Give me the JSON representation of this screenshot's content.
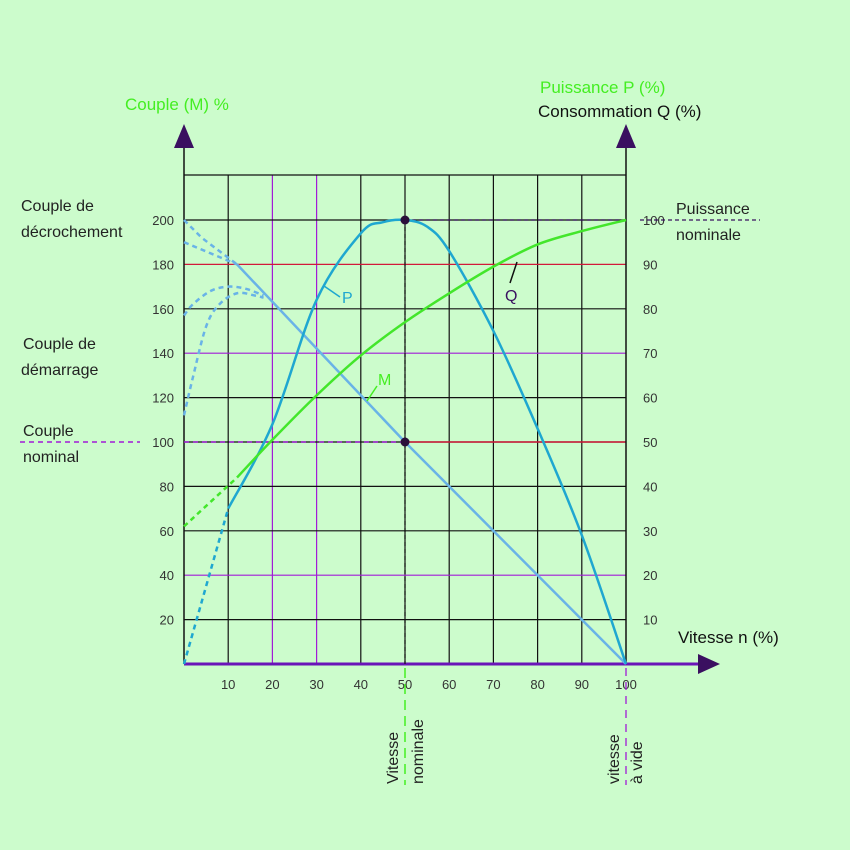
{
  "chart_data": {
    "type": "line",
    "xlabel": "Vitesse n (%)",
    "ylabel_left": "Couple (M) %",
    "ylabel_right_1": "Puissance P (%)",
    "ylabel_right_2": "Consommation Q (%)",
    "xlim": [
      0,
      100
    ],
    "ylim": [
      0,
      200
    ],
    "x_ticks": [
      "10",
      "20",
      "30",
      "40",
      "50",
      "60",
      "70",
      "80",
      "90",
      "100"
    ],
    "y_ticks_left": [
      "20",
      "40",
      "60",
      "80",
      "100",
      "120",
      "140",
      "160",
      "180",
      "200"
    ],
    "y_ticks_right": [
      "10",
      "20",
      "30",
      "40",
      "50",
      "60",
      "70",
      "80",
      "90",
      "100"
    ],
    "grid": true,
    "series": [
      {
        "name": "M",
        "color": "#69b3e7",
        "x": [
          0,
          12,
          50,
          100
        ],
        "y": [
          190,
          180,
          100,
          0
        ],
        "dashed_until_x": 12
      },
      {
        "name": "P",
        "color": "#1fa7d0",
        "x": [
          0,
          10,
          20,
          30,
          40,
          45,
          50,
          55,
          60,
          70,
          80,
          90,
          100
        ],
        "y": [
          0,
          70,
          108,
          164,
          194,
          199,
          200,
          197,
          186,
          150,
          106,
          58,
          0
        ],
        "dashed_until_x": 10
      },
      {
        "name": "Q",
        "color": "#43e62b",
        "x": [
          0,
          12,
          20,
          30,
          40,
          50,
          60,
          70,
          80,
          90,
          100
        ],
        "y": [
          62,
          84,
          101,
          121,
          139,
          154,
          167,
          179,
          189,
          195,
          200
        ],
        "dashed_until_x": 12
      }
    ],
    "low_speed_dashed_curves": [
      {
        "x": [
          0,
          2,
          6,
          10,
          14,
          18
        ],
        "y": [
          157,
          162,
          168,
          170,
          169,
          166
        ]
      },
      {
        "x": [
          0,
          2,
          5,
          8,
          12,
          16,
          18
        ],
        "y": [
          112,
          129,
          152,
          162,
          167,
          166,
          165
        ]
      }
    ],
    "annotations": {
      "couple_decrochement": [
        "Couple de",
        "décrochement"
      ],
      "couple_demarrage": [
        "Couple de",
        "démarrage"
      ],
      "couple_nominal": [
        "Couple",
        "nominal"
      ],
      "puissance_nominale": [
        "Puissance",
        "nominale"
      ],
      "vitesse_nominale": [
        "Vitesse",
        "nominale"
      ],
      "vitesse_a_vide": [
        "vitesse",
        "à vide"
      ],
      "curve_P": "P",
      "curve_Q": "Q",
      "curve_M": "M"
    },
    "nominal_point": {
      "x": 50,
      "y": 100
    },
    "max_power_point": {
      "x": 50,
      "y": 200
    }
  },
  "colors": {
    "background": "#ccfccc",
    "grid_black": "#111111",
    "grid_red": "#d11a3a",
    "grid_purple": "#a21bd6",
    "axis": "#6a14b8",
    "green_text": "#44ee22",
    "torque_line": "#69b3e7",
    "power_curve": "#1fa7d0",
    "consumption_curve": "#43e62b"
  }
}
